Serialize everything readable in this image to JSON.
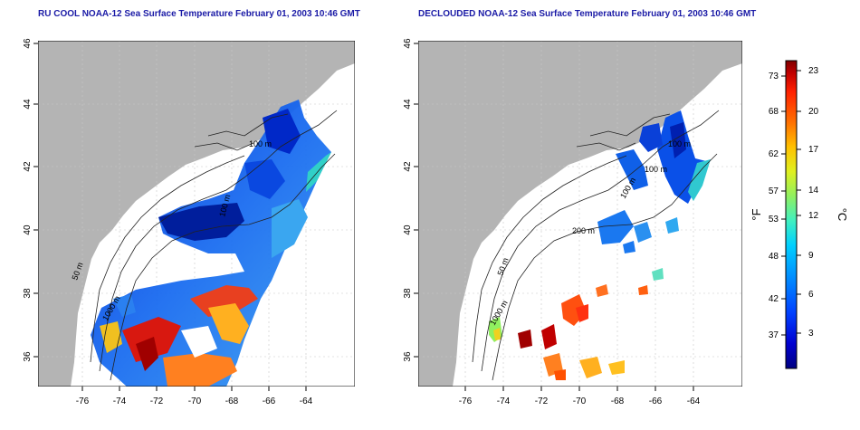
{
  "panels": [
    {
      "id": "left",
      "title": "RU COOL NOAA-12 Sea Surface Temperature February 01, 2003 10:46 GMT",
      "x_ticks": [
        "-76",
        "-74",
        "-72",
        "-70",
        "-68",
        "-66",
        "-64"
      ],
      "y_ticks": [
        "36",
        "38",
        "40",
        "42",
        "44",
        "46"
      ],
      "contour_labels": [
        "50 m",
        "100 m",
        "1000 m",
        "100 m"
      ]
    },
    {
      "id": "right",
      "title": "DECLOUDED NOAA-12 Sea Surface Temperature February 01, 2003 10:46 GMT",
      "x_ticks": [
        "-76",
        "-74",
        "-72",
        "-70",
        "-68",
        "-66",
        "-64"
      ],
      "y_ticks": [
        "36",
        "38",
        "40",
        "42",
        "44",
        "46"
      ],
      "contour_labels": [
        "50 m",
        "100 m",
        "1000 m",
        "200 m",
        "100 m",
        "100 m"
      ]
    }
  ],
  "colorbar": {
    "f_label": "°F",
    "c_label": "°C",
    "f_ticks": [
      "73",
      "68",
      "62",
      "57",
      "53",
      "48",
      "42",
      "37"
    ],
    "c_ticks": [
      "23",
      "20",
      "17",
      "14",
      "12",
      "9",
      "6",
      "3"
    ],
    "colors": [
      "#000080",
      "#0000d0",
      "#0040ff",
      "#0090ff",
      "#00d0ff",
      "#40f0c0",
      "#90f060",
      "#e0f020",
      "#ffc000",
      "#ff7000",
      "#ff2000",
      "#c00000",
      "#800000"
    ]
  },
  "colors": {
    "land": "#b4b4b4",
    "ocean": "#ffffff",
    "title": "#1a1aa6",
    "grid": "#c8c8c8"
  }
}
